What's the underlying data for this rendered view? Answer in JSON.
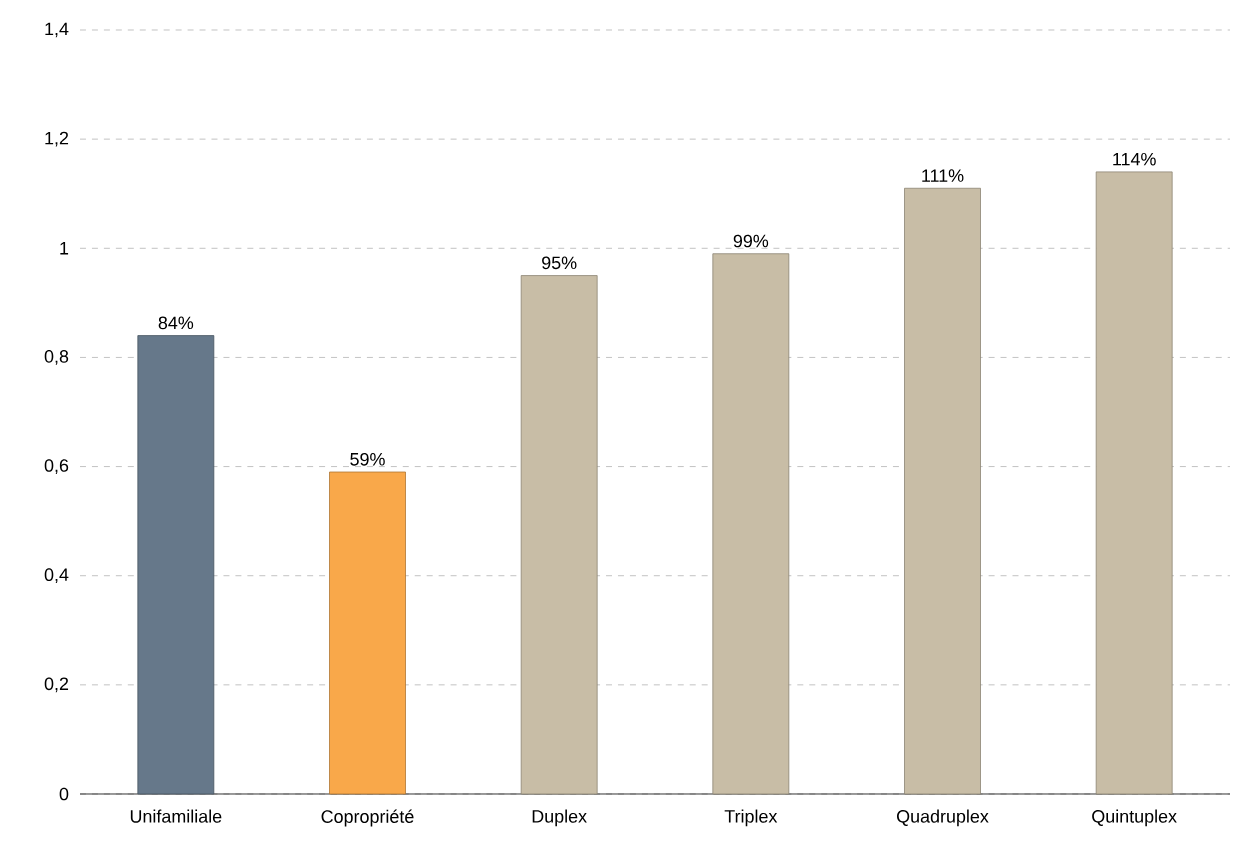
{
  "chart_data": {
    "type": "bar",
    "categories": [
      "Unifamiliale",
      "Copropriété",
      "Duplex",
      "Triplex",
      "Quadruplex",
      "Quintuplex"
    ],
    "values": [
      0.84,
      0.59,
      0.95,
      0.99,
      1.11,
      1.14
    ],
    "colors": [
      "#66788a",
      "#f9a84a",
      "#c8bda6",
      "#c8bda6",
      "#c8bda6",
      "#c8bda6"
    ],
    "value_labels": [
      "84%",
      "59%",
      "95%",
      "99%",
      "111%",
      "114%"
    ],
    "ylim": [
      0,
      1.4
    ],
    "yticks": [
      0,
      {
        "value": 0.2,
        "label": "0,2"
      },
      {
        "value": 0.4,
        "label": "0,4"
      },
      {
        "value": 0.6,
        "label": "0,6"
      },
      {
        "value": 0.8,
        "label": "0,8"
      },
      1,
      {
        "value": 1.2,
        "label": "1,2"
      },
      {
        "value": 1.4,
        "label": "1,4"
      }
    ],
    "grid": "y"
  }
}
